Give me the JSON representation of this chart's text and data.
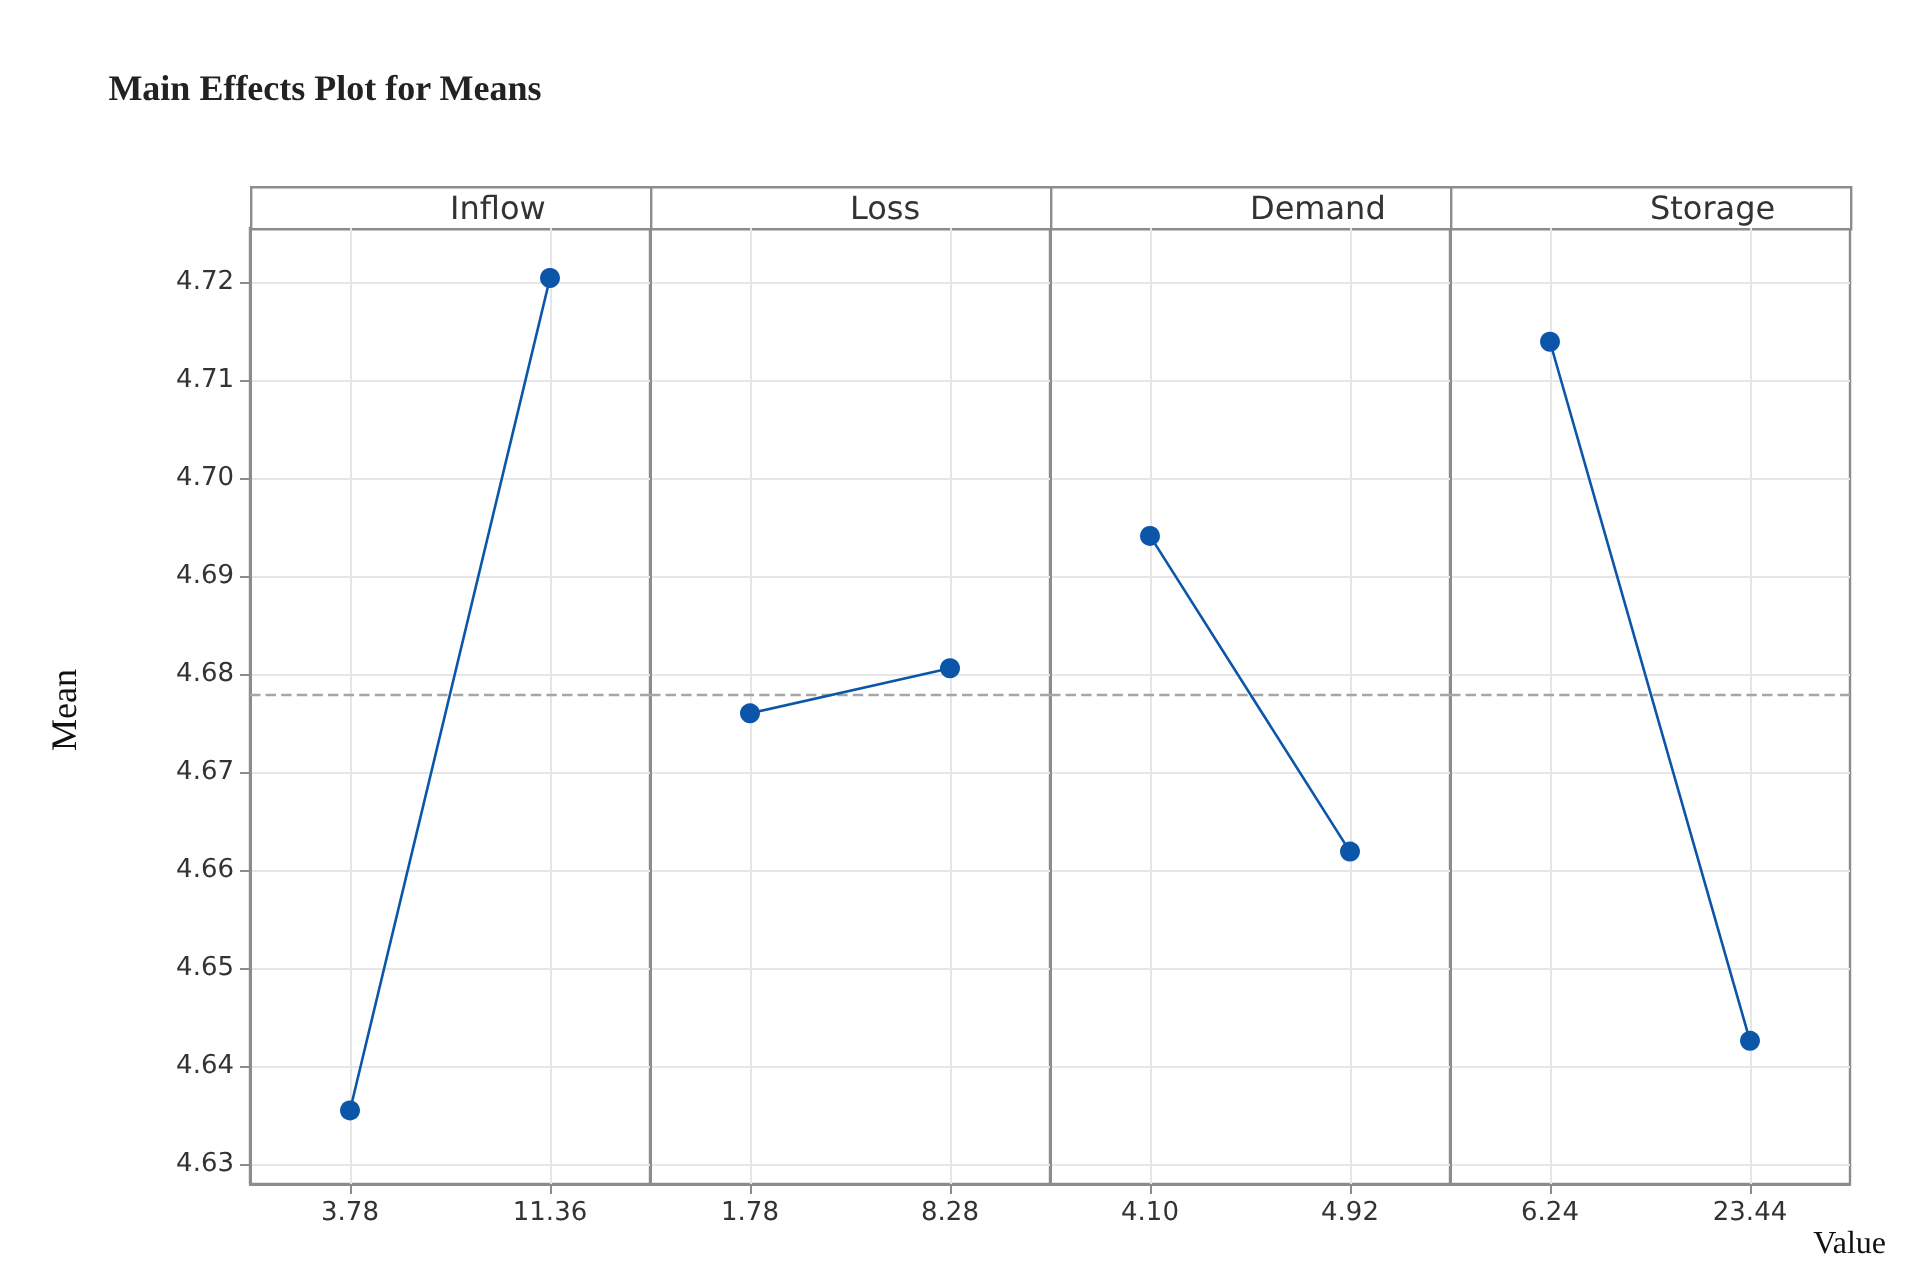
{
  "chart_data": [
    {
      "type": "line",
      "title": "Main Effects Plot for Means",
      "ylabel": "Mean",
      "categories": [
        "3.78",
        "11.36"
      ],
      "series": [
        {
          "name": "Inflow",
          "color": "#0b56a8",
          "values": [
            4.6355,
            4.7204
          ]
        }
      ],
      "ylim": [
        4.628,
        4.7255
      ],
      "yticks": [
        4.63,
        4.64,
        4.65,
        4.66,
        4.67,
        4.68,
        4.69,
        {
          "value": 4.7,
          "label": "4.70"
        },
        4.71,
        4.72
      ],
      "ref_lines": [
        {
          "axis": "y",
          "value": 4.678,
          "line_style": "dashed",
          "color": "#a6a6a6"
        }
      ],
      "grid": true,
      "legend": false,
      "marker": "circle",
      "line_style": "solid"
    },
    {
      "type": "line",
      "categories": [
        "1.78",
        "8.28"
      ],
      "series": [
        {
          "name": "Loss",
          "color": "#0b56a8",
          "values": [
            4.676,
            4.6806
          ]
        }
      ],
      "ylim": [
        4.628,
        4.7255
      ],
      "yticks": [
        4.63,
        4.64,
        4.65,
        4.66,
        4.67,
        4.68,
        4.69,
        4.7,
        4.71,
        4.72
      ],
      "tick_labels": "x",
      "ref_lines": [
        {
          "axis": "y",
          "value": 4.678,
          "line_style": "dashed",
          "color": "#a6a6a6"
        }
      ],
      "grid": true,
      "legend": false,
      "marker": "circle",
      "line_style": "solid"
    },
    {
      "type": "line",
      "categories": [
        "4.10",
        "4.92"
      ],
      "series": [
        {
          "name": "Demand",
          "color": "#0b56a8",
          "values": [
            4.6941,
            4.6619
          ]
        }
      ],
      "ylim": [
        4.628,
        4.7255
      ],
      "yticks": [
        4.63,
        4.64,
        4.65,
        4.66,
        4.67,
        4.68,
        4.69,
        4.7,
        4.71,
        4.72
      ],
      "tick_labels": "x",
      "ref_lines": [
        {
          "axis": "y",
          "value": 4.678,
          "line_style": "dashed",
          "color": "#a6a6a6"
        }
      ],
      "grid": true,
      "legend": false,
      "marker": "circle",
      "line_style": "solid"
    },
    {
      "type": "line",
      "xlabel": "Value",
      "categories": [
        "6.24",
        "23.44"
      ],
      "series": [
        {
          "name": "Storage",
          "color": "#0b56a8",
          "values": [
            4.7139,
            4.6426
          ]
        }
      ],
      "ylim": [
        4.628,
        4.7255
      ],
      "yticks": [
        4.63,
        4.64,
        4.65,
        4.66,
        4.67,
        4.68,
        4.69,
        4.7,
        4.71,
        4.72
      ],
      "tick_labels": "x",
      "ref_lines": [
        {
          "axis": "y",
          "value": 4.678,
          "line_style": "dashed",
          "color": "#a6a6a6"
        }
      ],
      "grid": true,
      "legend": false,
      "marker": "circle",
      "line_style": "solid"
    }
  ]
}
